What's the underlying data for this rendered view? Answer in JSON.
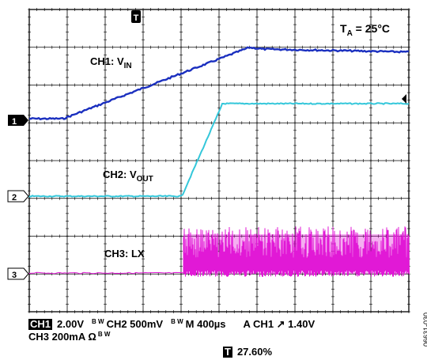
{
  "scope": {
    "grid": {
      "divisions_x": 10,
      "divisions_y": 8
    },
    "trigger_marker": "T",
    "ambient_label": {
      "prefix": "T",
      "sub": "A",
      "suffix": " = 25°C"
    },
    "trace_labels": [
      {
        "id": "ch1",
        "main": "CH1: V",
        "sub": "IN",
        "color": "#1a2fbf"
      },
      {
        "id": "ch2",
        "main": "CH2: V",
        "sub": "OUT",
        "color": "#34c7da"
      },
      {
        "id": "ch3",
        "main": "CH3: LX",
        "sub": "",
        "color": "#e11ad6"
      }
    ],
    "channel_markers": [
      "1",
      "2",
      "3"
    ],
    "colors": {
      "ch1": "#1a2fbf",
      "ch2": "#34c7da",
      "ch3": "#e11ad6",
      "grid": "#000000"
    }
  },
  "footer": {
    "ch1_badge": "CH1",
    "ch1_scale": "2.00V",
    "bw_mark": "B W",
    "ch2_scale": "CH2  500mV",
    "timebase": "M 400µs",
    "trigger": "A  CH1  ↗  1.40V",
    "ch3_scale": "CH3  200mA Ω",
    "trigger_position": "27.60%",
    "figure_ref": "06631-030"
  }
}
